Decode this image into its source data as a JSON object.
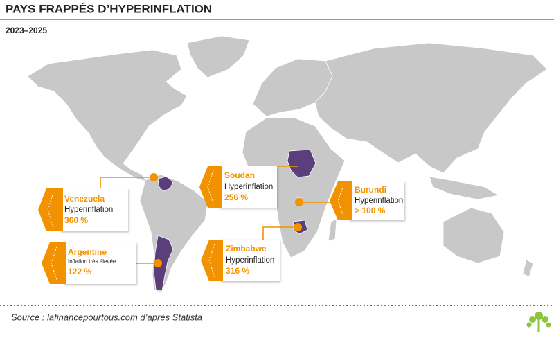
{
  "header": {
    "title": "PAYS FRAPPÉS D’HYPERINFLATION",
    "subtitle": "2023–2025"
  },
  "callouts": [
    {
      "country": "Venezuela",
      "status": "Hyperinflation",
      "rate": "360 %"
    },
    {
      "country": "Argentine",
      "status": "Inflation très élevée",
      "rate": "122 %"
    },
    {
      "country": "Soudan",
      "status": "Hyperinflation",
      "rate": "256 %"
    },
    {
      "country": "Burundi",
      "status": "Hyperinflation",
      "rate": "> 100 %"
    },
    {
      "country": "Zimbabwe",
      "status": "Hyperinflation",
      "rate": "316 %"
    }
  ],
  "footer": {
    "source": "Source : lafinancepourtous.com d’après Statista"
  }
}
